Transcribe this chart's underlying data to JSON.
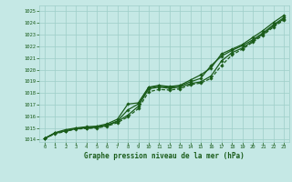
{
  "bg_color": "#c5e8e5",
  "grid_color": "#9ecec8",
  "line_color": "#1a5c1a",
  "xlim": [
    -0.5,
    23.5
  ],
  "ylim": [
    1013.8,
    1025.5
  ],
  "xticks": [
    0,
    1,
    2,
    3,
    4,
    5,
    6,
    7,
    8,
    9,
    10,
    11,
    12,
    13,
    14,
    15,
    16,
    17,
    18,
    19,
    20,
    21,
    22,
    23
  ],
  "yticks": [
    1014,
    1015,
    1016,
    1017,
    1018,
    1019,
    1020,
    1021,
    1022,
    1023,
    1024,
    1025
  ],
  "xlabel": "Graphe pression niveau de la mer (hPa)",
  "line1_x": [
    0,
    1,
    2,
    3,
    4,
    5,
    6,
    7,
    8,
    9,
    10,
    11,
    12,
    13,
    14,
    15,
    16,
    17,
    18,
    19,
    20,
    21,
    22,
    23
  ],
  "line1_y": [
    1014.1,
    1014.6,
    1014.85,
    1015.0,
    1015.1,
    1015.15,
    1015.35,
    1015.75,
    1017.05,
    1017.15,
    1018.5,
    1018.65,
    1018.55,
    1018.65,
    1019.1,
    1019.55,
    1020.15,
    1021.35,
    1021.75,
    1022.15,
    1022.75,
    1023.35,
    1024.05,
    1024.65
  ],
  "line2_x": [
    0,
    1,
    2,
    3,
    4,
    5,
    6,
    7,
    8,
    9,
    10,
    11,
    12,
    13,
    14,
    15,
    16,
    17,
    18,
    19,
    20,
    21,
    22,
    23
  ],
  "line2_y": [
    1014.1,
    1014.55,
    1014.75,
    1014.95,
    1015.05,
    1015.1,
    1015.25,
    1015.6,
    1016.55,
    1017.05,
    1018.45,
    1018.6,
    1018.5,
    1018.6,
    1018.95,
    1019.25,
    1020.35,
    1021.15,
    1021.65,
    1022.05,
    1022.55,
    1023.15,
    1023.85,
    1024.45
  ],
  "line3_x": [
    0,
    1,
    2,
    3,
    4,
    5,
    6,
    7,
    8,
    9,
    10,
    11,
    12,
    13,
    14,
    15,
    16,
    17,
    18,
    19,
    20,
    21,
    22,
    23
  ],
  "line3_y": [
    1014.1,
    1014.55,
    1014.75,
    1014.95,
    1015.0,
    1015.05,
    1015.2,
    1015.55,
    1016.1,
    1016.85,
    1018.35,
    1018.5,
    1018.4,
    1018.5,
    1018.8,
    1018.95,
    1019.45,
    1020.75,
    1021.45,
    1021.85,
    1022.45,
    1023.05,
    1023.75,
    1024.35
  ],
  "line4_x": [
    0,
    1,
    2,
    3,
    4,
    5,
    6,
    7,
    8,
    9,
    10,
    11,
    12,
    13,
    14,
    15,
    16,
    17,
    18,
    19,
    20,
    21,
    22,
    23
  ],
  "line4_y": [
    1014.1,
    1014.5,
    1014.7,
    1014.9,
    1014.95,
    1015.0,
    1015.15,
    1015.45,
    1015.95,
    1016.65,
    1018.1,
    1018.3,
    1018.25,
    1018.35,
    1018.7,
    1018.85,
    1019.25,
    1020.35,
    1021.25,
    1021.75,
    1022.35,
    1022.95,
    1023.65,
    1024.25
  ]
}
